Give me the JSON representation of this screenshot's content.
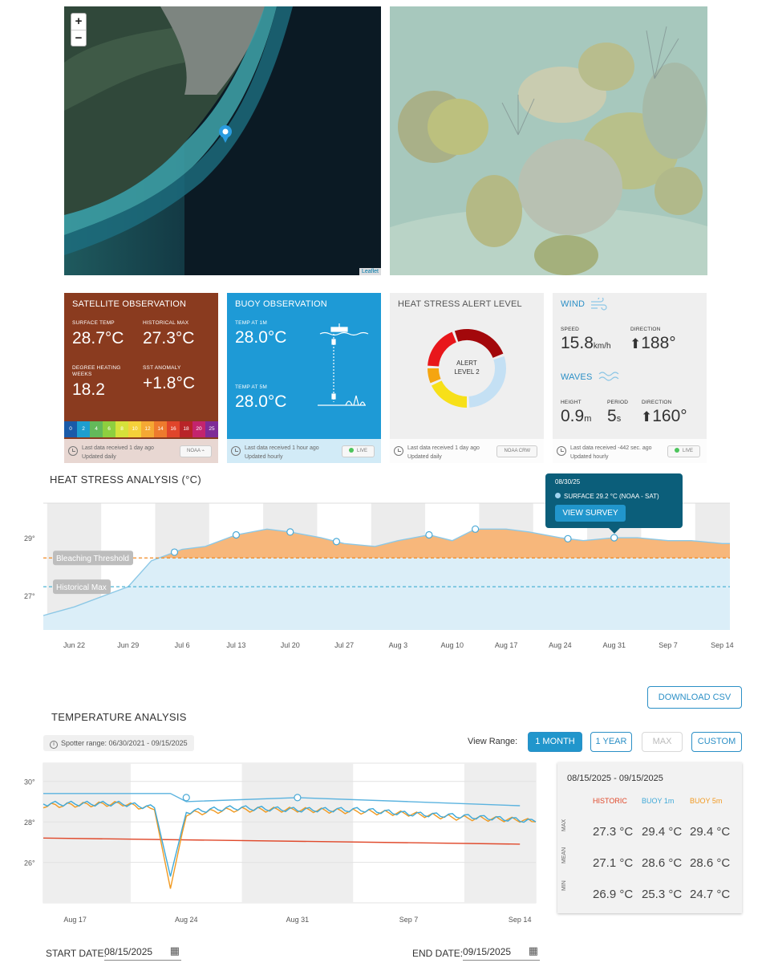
{
  "map": {
    "zoom_in": "+",
    "zoom_out": "−",
    "attribution": "Leaflet"
  },
  "satellite": {
    "title": "SATELLITE OBSERVATION",
    "surface_temp_label": "SURFACE TEMP",
    "surface_temp": "28.7°C",
    "historical_max_label": "HISTORICAL MAX",
    "historical_max": "27.3°C",
    "dhw_label": "DEGREE HEATING WEEKS",
    "dhw": "18.2",
    "anomaly_label": "SST ANOMALY",
    "anomaly": "+1.8°C",
    "scale": [
      "0",
      "2",
      "4",
      "6",
      "8",
      "10",
      "12",
      "14",
      "16",
      "18",
      "20",
      "25"
    ],
    "scale_colors": [
      "#1a5aa8",
      "#1e9ecf",
      "#63b95a",
      "#8ecf3f",
      "#d6e13a",
      "#f5d03a",
      "#f5a833",
      "#ee7a2d",
      "#e0452b",
      "#b82428",
      "#c3246d",
      "#7e2b97"
    ],
    "footer_line1": "Last data received 1 day ago",
    "footer_line2": "Updated daily",
    "source": "NOAA",
    "bg_color": "#8a3b1f"
  },
  "buoy": {
    "title": "BUOY OBSERVATION",
    "temp1_label": "TEMP AT 1m",
    "temp1": "28.0°C",
    "temp5_label": "TEMP AT 5m",
    "temp5": "28.0°C",
    "footer_line1": "Last data received 1 hour ago",
    "footer_line2": "Updated hourly",
    "status": "LIVE",
    "bg_color": "#1e9ad6"
  },
  "alert": {
    "title": "HEAT STRESS ALERT LEVEL",
    "center_line1": "ALERT",
    "center_line2": "LEVEL 2",
    "footer_line1": "Last data received 1 day ago",
    "footer_line2": "Updated daily",
    "source": "NOAA CRW",
    "ring_colors": [
      "#e8161b",
      "#a3080b",
      "#c4e0f4",
      "#f7e019",
      "#f5a510"
    ]
  },
  "wind": {
    "title": "WIND",
    "speed_label": "SPEED",
    "speed": "15.8",
    "speed_unit": "km/h",
    "direction_label": "DIRECTION",
    "direction": "188°",
    "waves_title": "WAVES",
    "height_label": "HEIGHT",
    "height": "0.9",
    "height_unit": "m",
    "period_label": "PERIOD",
    "period": "5",
    "period_unit": "s",
    "wave_direction_label": "DIRECTION",
    "wave_direction": "160°",
    "footer_line1": "Last data received -442 sec. ago",
    "footer_line2": "Updated hourly",
    "status": "LIVE"
  },
  "heat_stress": {
    "title": "HEAT STRESS ANALYSIS (°C)",
    "tooltip_date": "08/30/25",
    "tooltip_text": "SURFACE 29.2 °C (NOAA - SAT)",
    "tooltip_button": "VIEW SURVEY",
    "threshold_label": "Bleaching Threshold",
    "hist_max_label": "Historical Max",
    "y_ticks": [
      "29°",
      "27°"
    ],
    "x_ticks": [
      "Jun 22",
      "Jun 29",
      "Jul 6",
      "Jul 13",
      "Jul 20",
      "Jul 27",
      "Aug 3",
      "Aug 10",
      "Aug 17",
      "Aug 24",
      "Aug 31",
      "Sep 7",
      "Sep 14"
    ]
  },
  "temperature": {
    "title": "TEMPERATURE ANALYSIS",
    "download_button": "DOWNLOAD CSV",
    "spotter_range": "Spotter range: 06/30/2021 - 09/15/2025",
    "view_range_label": "View Range:",
    "range_options": [
      "1 MONTH",
      "1 YEAR",
      "MAX",
      "CUSTOM"
    ],
    "y_ticks": [
      "30°",
      "28°",
      "26°"
    ],
    "x_ticks": [
      "Aug 17",
      "Aug 24",
      "Aug 31",
      "Sep 7",
      "Sep 14"
    ],
    "stats": {
      "date_range": "08/15/2025 - 09/15/2025",
      "col_historic": "HISTORIC",
      "col_buoy1": "BUOY 1m",
      "col_buoy5": "BUOY 5m",
      "row_max": "MAX",
      "row_mean": "MEAN",
      "row_min": "MIN",
      "max": [
        "27.3 °C",
        "29.4 °C",
        "29.4 °C"
      ],
      "mean": [
        "27.1 °C",
        "28.6 °C",
        "28.6 °C"
      ],
      "min": [
        "26.9 °C",
        "25.3 °C",
        "24.7 °C"
      ]
    },
    "colors": {
      "historic": "#e0492b",
      "buoy1": "#3fa9d8",
      "buoy5": "#f19a22",
      "surface": "#5bb3df"
    }
  },
  "dates": {
    "start_label": "START DATE:",
    "start_value": "08/15/2025",
    "end_label": "END DATE:",
    "end_value": "09/15/2025"
  },
  "chart_data": [
    {
      "type": "area",
      "title": "HEAT STRESS ANALYSIS (°C)",
      "ylim": [
        25.8,
        30.2
      ],
      "x_range": [
        "2025-06-18",
        "2025-09-15"
      ],
      "series": [
        {
          "name": "",
          "x": [
            "Jun 18",
            "Jun 22",
            "Jun 26",
            "Jun 29",
            "Jul 2",
            "Jul 6",
            "Jul 9",
            "Jul 13",
            "Jul 17",
            "Jul 20",
            "Jul 24",
            "Jul 27",
            "Jul 31",
            "Aug 3",
            "Aug 7",
            "Aug 10",
            "Aug 13",
            "Aug 17",
            "Aug 20",
            "Aug 24",
            "Aug 27",
            "Aug 31",
            "Sep 3",
            "Sep 7",
            "Sep 10",
            "Sep 14",
            "Sep 15"
          ],
          "values": [
            26.3,
            26.6,
            27.0,
            27.3,
            28.2,
            28.6,
            28.7,
            29.1,
            29.3,
            29.2,
            29.0,
            28.8,
            28.7,
            28.9,
            29.1,
            28.9,
            29.3,
            29.3,
            29.2,
            29.0,
            28.9,
            29.0,
            29.0,
            28.9,
            28.9,
            28.8,
            28.8
          ]
        }
      ],
      "bleaching_threshold": 28.3,
      "historical_max": 27.3,
      "survey_points": [
        "Jul 5",
        "Jul 13",
        "Jul 20",
        "Jul 26",
        "Aug 7",
        "Aug 13",
        "Aug 25",
        "Aug 31"
      ]
    },
    {
      "type": "line",
      "title": "TEMPERATURE ANALYSIS",
      "ylim": [
        24.0,
        30.9
      ],
      "x_range": [
        "2025-08-15",
        "2025-09-15"
      ],
      "series": [
        {
          "name": "HISTORIC",
          "x": [
            "Aug 15",
            "Sep 14"
          ],
          "values": [
            27.2,
            26.9
          ]
        },
        {
          "name": "BUOY 1m",
          "x": [
            "Aug 15",
            "Aug 20",
            "Aug 22",
            "Aug 23",
            "Aug 24",
            "Aug 27",
            "Aug 31",
            "Sep 4",
            "Sep 7",
            "Sep 10",
            "Sep 14",
            "Sep 15"
          ],
          "values": [
            28.9,
            28.9,
            28.7,
            25.3,
            28.5,
            28.7,
            28.6,
            28.6,
            28.4,
            28.3,
            28.1,
            28.0
          ]
        },
        {
          "name": "BUOY 5m",
          "x": [
            "Aug 15",
            "Aug 20",
            "Aug 22",
            "Aug 23",
            "Aug 24",
            "Aug 27",
            "Aug 31",
            "Sep 4",
            "Sep 7",
            "Sep 10",
            "Sep 14",
            "Sep 15"
          ],
          "values": [
            28.8,
            28.9,
            28.6,
            24.7,
            28.4,
            28.6,
            28.6,
            28.5,
            28.4,
            28.2,
            28.1,
            28.0
          ]
        },
        {
          "name": "",
          "x": [
            "Aug 15",
            "Aug 20",
            "Aug 23",
            "Aug 24",
            "Aug 31",
            "Sep 7",
            "Sep 14"
          ],
          "values": [
            29.4,
            29.4,
            29.4,
            29.0,
            29.2,
            29.0,
            28.8
          ]
        }
      ]
    }
  ]
}
